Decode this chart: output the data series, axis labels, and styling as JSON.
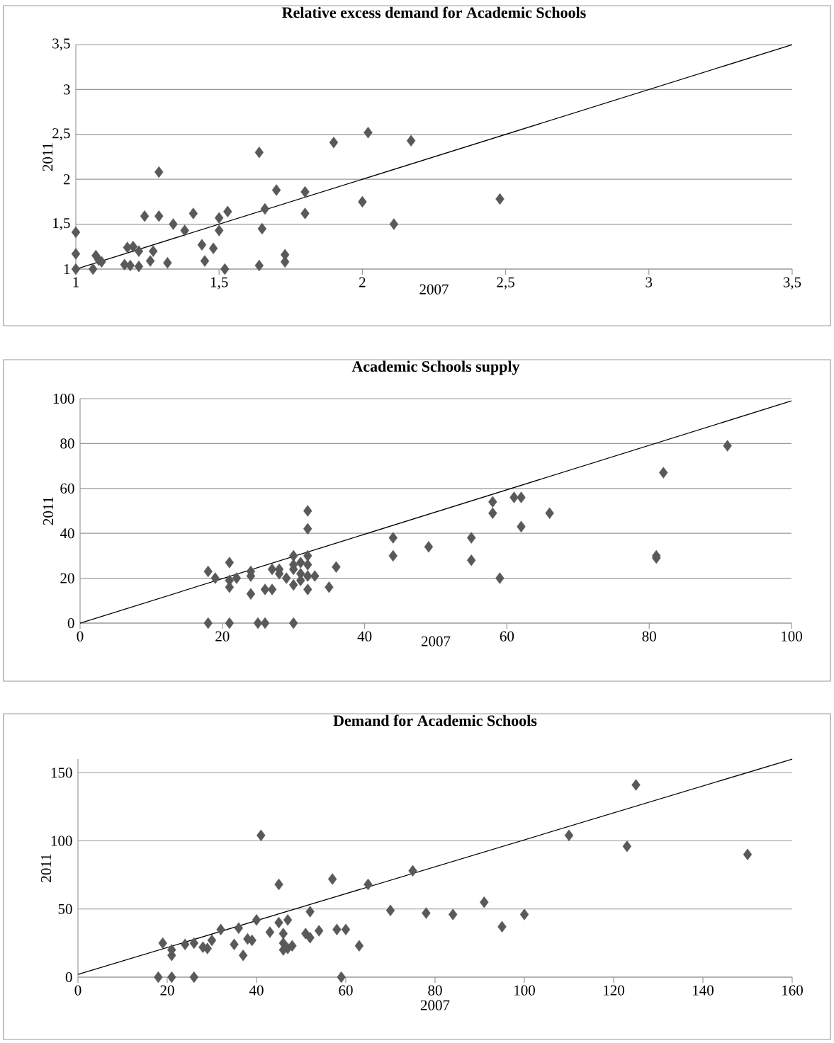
{
  "chart_data": [
    {
      "type": "scatter",
      "title": "Relative excess demand for Academic Schools",
      "xlabel": "2007",
      "ylabel": "2011",
      "xlim": [
        1,
        3.5
      ],
      "ylim": [
        1,
        3.5
      ],
      "xticks": [
        1,
        {
          "value": 1.5,
          "label": "1,5"
        },
        2,
        {
          "value": 2.5,
          "label": "2,5"
        },
        3,
        {
          "value": 3.5,
          "label": "3,5"
        }
      ],
      "yticks": [
        1,
        {
          "value": 1.5,
          "label": "1,5"
        },
        2,
        {
          "value": 2.5,
          "label": "2,5"
        },
        3,
        {
          "value": 3.5,
          "label": "3,5"
        }
      ],
      "grid": "y",
      "marker": "diamond",
      "series": [
        {
          "color": "#595959",
          "x": [
            1.0,
            1.0,
            1.0,
            1.06,
            1.07,
            1.08,
            1.09,
            1.17,
            1.18,
            1.2,
            1.19,
            1.22,
            1.22,
            1.24,
            1.26,
            1.27,
            1.29,
            1.29,
            1.32,
            1.34,
            1.38,
            1.41,
            1.44,
            1.45,
            1.48,
            1.5,
            1.5,
            1.52,
            1.53,
            1.64,
            1.64,
            1.65,
            1.66,
            1.7,
            1.73,
            1.73,
            1.8,
            1.8,
            1.9,
            2.0,
            2.02,
            2.11,
            2.17,
            2.48
          ],
          "values": [
            1.41,
            1.17,
            1.0,
            1.0,
            1.15,
            1.1,
            1.08,
            1.05,
            1.24,
            1.25,
            1.04,
            1.2,
            1.03,
            1.59,
            1.09,
            1.2,
            2.08,
            1.59,
            1.07,
            1.5,
            1.43,
            1.62,
            1.27,
            1.09,
            1.23,
            1.43,
            1.57,
            1.0,
            1.64,
            2.3,
            1.04,
            1.45,
            1.67,
            1.88,
            1.16,
            1.08,
            1.86,
            1.62,
            2.41,
            1.75,
            2.52,
            1.5,
            2.43,
            1.78
          ]
        },
        {
          "type": "line",
          "color": "#000000",
          "marker": "none",
          "x": [
            1,
            3.5
          ],
          "values": [
            1,
            3.5
          ]
        }
      ]
    },
    {
      "type": "scatter",
      "title": "Academic Schools supply",
      "xlabel": "2007",
      "ylabel": "2011",
      "xlim": [
        0,
        100
      ],
      "ylim": [
        0,
        100
      ],
      "xticks": [
        0,
        20,
        40,
        60,
        80,
        100
      ],
      "yticks": [
        0,
        20,
        40,
        60,
        80,
        100
      ],
      "grid": "y",
      "marker": "diamond",
      "series": [
        {
          "color": "#595959",
          "x": [
            18,
            18,
            19,
            21,
            21,
            21,
            21,
            22,
            24,
            24,
            24,
            25,
            26,
            26,
            27,
            27,
            28,
            28,
            29,
            30,
            30,
            30,
            30,
            30,
            31,
            31,
            31,
            32,
            32,
            32,
            32,
            32,
            32,
            33,
            35,
            36,
            44,
            44,
            49,
            55,
            55,
            58,
            58,
            59,
            61,
            62,
            62,
            66,
            81,
            81,
            82,
            91
          ],
          "values": [
            23,
            0,
            20,
            27,
            16,
            0,
            19,
            20,
            23,
            21,
            13,
            0,
            15,
            0,
            15,
            24,
            22,
            24,
            20,
            30,
            17,
            0,
            26,
            24,
            22,
            19,
            27,
            50,
            42,
            30,
            26,
            21,
            15,
            21,
            16,
            25,
            38,
            30,
            34,
            38,
            28,
            54,
            49,
            20,
            56,
            56,
            43,
            49,
            30,
            29,
            67,
            79
          ]
        },
        {
          "type": "line",
          "color": "#000000",
          "marker": "none",
          "x": [
            0,
            100
          ],
          "values": [
            0,
            99
          ]
        }
      ]
    },
    {
      "type": "scatter",
      "title": "Demand for Academic Schools",
      "xlabel": "2007",
      "ylabel": "2011",
      "xlim": [
        0,
        160
      ],
      "ylim": [
        0,
        160
      ],
      "xticks": [
        0,
        20,
        40,
        60,
        80,
        100,
        120,
        140,
        160
      ],
      "yticks": [
        0,
        50,
        100,
        150
      ],
      "grid": "y",
      "marker": "diamond",
      "series": [
        {
          "color": "#595959",
          "x": [
            18,
            19,
            21,
            21,
            21,
            24,
            26,
            26,
            28,
            29,
            30,
            32,
            35,
            36,
            37,
            38,
            39,
            40,
            41,
            43,
            45,
            45,
            46,
            46,
            46,
            47,
            47,
            48,
            51,
            52,
            52,
            54,
            57,
            58,
            59,
            60,
            63,
            65,
            70,
            75,
            78,
            84,
            91,
            95,
            100,
            110,
            123,
            125,
            150
          ],
          "values": [
            0,
            25,
            20,
            16,
            0,
            24,
            25,
            0,
            22,
            21,
            27,
            35,
            24,
            36,
            16,
            28,
            27,
            42,
            104,
            33,
            68,
            40,
            32,
            25,
            20,
            42,
            21,
            23,
            32,
            29,
            48,
            34,
            72,
            35,
            0,
            35,
            23,
            68,
            49,
            78,
            47,
            46,
            55,
            37,
            46,
            104,
            96,
            141,
            90
          ]
        },
        {
          "type": "line",
          "color": "#000000",
          "marker": "none",
          "x": [
            0,
            160
          ],
          "values": [
            2,
            160
          ]
        }
      ]
    }
  ]
}
